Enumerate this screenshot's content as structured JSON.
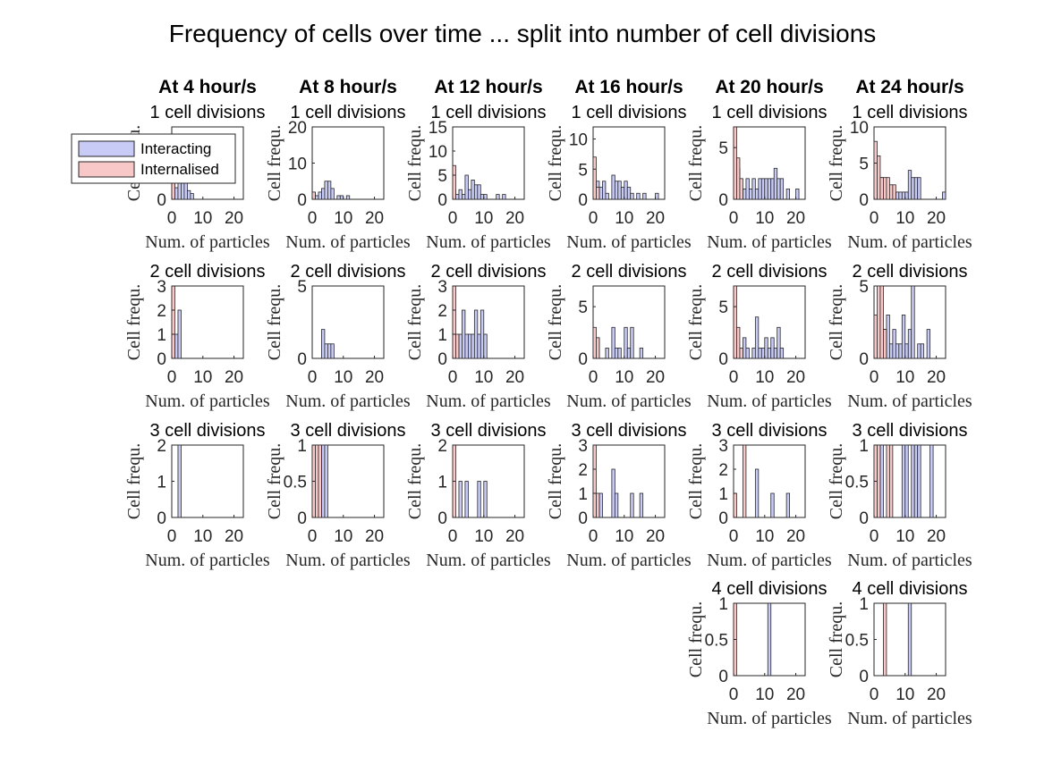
{
  "figure": {
    "title": "Frequency of cells over time ... split into number of cell divisions",
    "column_titles": [
      "At 4 hour/s",
      "At 8 hour/s",
      "At 12 hour/s",
      "At 16 hour/s",
      "At 20 hour/s",
      "At 24 hour/s"
    ]
  },
  "legend": {
    "items": [
      {
        "label": "Interacting",
        "color": "#c8cbf5"
      },
      {
        "label": "Internalised",
        "color": "#f8c8c8"
      }
    ]
  },
  "colors": {
    "interacting": "#c8cbf5",
    "internalised": "#f8c8c8",
    "edge": "#262626"
  },
  "chart_data": [
    {
      "type": "bar",
      "row": 0,
      "col": 0,
      "title": "1 cell divisions",
      "xlabel": "Num. of particles",
      "ylabel": "Cell frequ.",
      "xlim": [
        0,
        23
      ],
      "ylim": [
        0,
        25
      ],
      "xticks": [
        0,
        10,
        20
      ],
      "yticks": [
        0,
        10,
        20
      ],
      "series": [
        {
          "name": "Interacting",
          "x": [
            0,
            1,
            2,
            3,
            4,
            5,
            6
          ],
          "values": [
            7,
            4,
            8,
            10,
            7,
            3,
            2
          ]
        },
        {
          "name": "Internalised",
          "x": [
            0
          ],
          "values": [
            14
          ]
        }
      ]
    },
    {
      "type": "bar",
      "row": 0,
      "col": 1,
      "title": "1 cell divisions",
      "xlabel": "Num. of particles",
      "ylabel": "Cell frequ.",
      "xlim": [
        0,
        23
      ],
      "ylim": [
        0,
        20
      ],
      "xticks": [
        0,
        10,
        20
      ],
      "yticks": [
        0,
        10,
        20
      ],
      "series": [
        {
          "name": "Interacting",
          "x": [
            0,
            1,
            2,
            3,
            4,
            5,
            6,
            8,
            9,
            11
          ],
          "values": [
            2,
            1,
            2,
            3,
            5,
            5,
            3,
            1,
            1,
            1
          ]
        },
        {
          "name": "Internalised",
          "x": [
            0
          ],
          "values": [
            2
          ]
        }
      ]
    },
    {
      "type": "bar",
      "row": 0,
      "col": 2,
      "title": "1 cell divisions",
      "xlabel": "Num. of particles",
      "ylabel": "Cell frequ.",
      "xlim": [
        0,
        23
      ],
      "ylim": [
        0,
        15
      ],
      "xticks": [
        0,
        10,
        20
      ],
      "yticks": [
        0,
        5,
        10,
        15
      ],
      "series": [
        {
          "name": "Interacting",
          "x": [
            0,
            1,
            2,
            3,
            4,
            5,
            6,
            7,
            8,
            9,
            10,
            14,
            16
          ],
          "values": [
            2,
            1,
            2,
            1,
            5,
            2,
            4,
            3,
            3,
            1,
            1,
            1,
            1
          ]
        },
        {
          "name": "Internalised",
          "x": [
            0
          ],
          "values": [
            7
          ]
        }
      ]
    },
    {
      "type": "bar",
      "row": 0,
      "col": 3,
      "title": "1 cell divisions",
      "xlabel": "Num. of particles",
      "ylabel": "Cell frequ.",
      "xlim": [
        0,
        23
      ],
      "ylim": [
        0,
        12
      ],
      "xticks": [
        0,
        10,
        20
      ],
      "yticks": [
        0,
        5,
        10
      ],
      "series": [
        {
          "name": "Interacting",
          "x": [
            1,
            2,
            3,
            4,
            6,
            7,
            8,
            9,
            10,
            11,
            12,
            14,
            16,
            20
          ],
          "values": [
            3,
            2,
            3,
            1,
            4,
            3,
            3,
            2,
            3,
            2,
            1,
            1,
            1,
            1
          ]
        },
        {
          "name": "Internalised",
          "x": [
            0,
            1
          ],
          "values": [
            7,
            2
          ]
        }
      ]
    },
    {
      "type": "bar",
      "row": 0,
      "col": 4,
      "title": "1 cell divisions",
      "xlabel": "Num. of particles",
      "ylabel": "Cell frequ.",
      "xlim": [
        0,
        23
      ],
      "ylim": [
        0,
        7
      ],
      "xticks": [
        0,
        10,
        20
      ],
      "yticks": [
        0,
        5
      ],
      "series": [
        {
          "name": "Interacting",
          "x": [
            1,
            2,
            3,
            4,
            5,
            6,
            7,
            8,
            9,
            10,
            11,
            12,
            13,
            14,
            15,
            17,
            20
          ],
          "values": [
            3,
            1,
            1,
            2,
            1,
            2,
            1,
            2,
            2,
            2,
            2,
            2,
            3,
            2,
            2,
            1,
            1
          ]
        },
        {
          "name": "Internalised",
          "x": [
            0,
            1,
            2
          ],
          "values": [
            7,
            4,
            2
          ]
        }
      ]
    },
    {
      "type": "bar",
      "row": 0,
      "col": 5,
      "title": "1 cell divisions",
      "xlabel": "Num. of particles",
      "ylabel": "Cell frequ.",
      "xlim": [
        0,
        23
      ],
      "ylim": [
        0,
        10
      ],
      "xticks": [
        0,
        10,
        20
      ],
      "yticks": [
        0,
        5,
        10
      ],
      "series": [
        {
          "name": "Interacting",
          "x": [
            1,
            2,
            3,
            4,
            5,
            6,
            7,
            8,
            9,
            10,
            11,
            12,
            13,
            14,
            22
          ],
          "values": [
            2,
            3,
            2,
            1,
            1,
            1,
            1,
            1,
            1,
            1,
            4,
            3,
            3,
            3,
            1
          ]
        },
        {
          "name": "Internalised",
          "x": [
            0,
            1,
            2,
            3,
            4,
            5,
            6
          ],
          "values": [
            8,
            6,
            3,
            3,
            3,
            2,
            2
          ]
        }
      ]
    },
    {
      "type": "bar",
      "row": 1,
      "col": 0,
      "title": "2 cell divisions",
      "xlabel": "Num. of particles",
      "ylabel": "Cell frequ.",
      "xlim": [
        0,
        23
      ],
      "ylim": [
        0,
        3
      ],
      "xticks": [
        0,
        10,
        20
      ],
      "yticks": [
        0,
        1,
        2,
        3
      ],
      "series": [
        {
          "name": "Interacting",
          "x": [
            1,
            2
          ],
          "values": [
            1,
            2
          ]
        },
        {
          "name": "Internalised",
          "x": [
            0
          ],
          "values": [
            3
          ]
        }
      ]
    },
    {
      "type": "bar",
      "row": 1,
      "col": 1,
      "title": "2 cell divisions",
      "xlabel": "Num. of particles",
      "ylabel": "Cell frequ.",
      "xlim": [
        0,
        23
      ],
      "ylim": [
        0,
        5
      ],
      "xticks": [
        0,
        10,
        20
      ],
      "yticks": [
        0,
        5
      ],
      "series": [
        {
          "name": "Interacting",
          "x": [
            3,
            4,
            5,
            6
          ],
          "values": [
            2,
            1,
            1,
            1
          ]
        },
        {
          "name": "Internalised",
          "x": [],
          "values": []
        }
      ]
    },
    {
      "type": "bar",
      "row": 1,
      "col": 2,
      "title": "2 cell divisions",
      "xlabel": "Num. of particles",
      "ylabel": "Cell frequ.",
      "xlim": [
        0,
        23
      ],
      "ylim": [
        0,
        3
      ],
      "xticks": [
        0,
        10,
        20
      ],
      "yticks": [
        0,
        1,
        2,
        3
      ],
      "series": [
        {
          "name": "Interacting",
          "x": [
            2,
            3,
            4,
            5,
            6,
            7,
            8,
            9,
            10
          ],
          "values": [
            1,
            2,
            1,
            1,
            1,
            2,
            1,
            2,
            1
          ]
        },
        {
          "name": "Internalised",
          "x": [
            0,
            1
          ],
          "values": [
            3,
            1
          ]
        }
      ]
    },
    {
      "type": "bar",
      "row": 1,
      "col": 3,
      "title": "2 cell divisions",
      "xlabel": "Num. of particles",
      "ylabel": "Cell frequ.",
      "xlim": [
        0,
        23
      ],
      "ylim": [
        0,
        7
      ],
      "xticks": [
        0,
        10,
        20
      ],
      "yticks": [
        0,
        5
      ],
      "series": [
        {
          "name": "Interacting",
          "x": [
            1,
            4,
            6,
            7,
            8,
            10,
            11,
            12,
            15
          ],
          "values": [
            2,
            1,
            3,
            1,
            1,
            3,
            1,
            3,
            1
          ]
        },
        {
          "name": "Internalised",
          "x": [
            0,
            1
          ],
          "values": [
            3,
            2
          ]
        }
      ]
    },
    {
      "type": "bar",
      "row": 1,
      "col": 4,
      "title": "2 cell divisions",
      "xlabel": "Num. of particles",
      "ylabel": "Cell frequ.",
      "xlim": [
        0,
        23
      ],
      "ylim": [
        0,
        7
      ],
      "xticks": [
        0,
        10,
        20
      ],
      "yticks": [
        0,
        5
      ],
      "series": [
        {
          "name": "Interacting",
          "x": [
            3,
            4,
            6,
            7,
            8,
            9,
            10,
            11,
            12,
            13,
            14,
            15
          ],
          "values": [
            2,
            1,
            1,
            4,
            1,
            1,
            2,
            1,
            2,
            1,
            3,
            1
          ]
        },
        {
          "name": "Internalised",
          "x": [
            0,
            1,
            2
          ],
          "values": [
            7,
            3,
            1
          ]
        }
      ]
    },
    {
      "type": "bar",
      "row": 1,
      "col": 5,
      "title": "2 cell divisions",
      "xlabel": "Num. of particles",
      "ylabel": "Cell frequ.",
      "xlim": [
        0,
        23
      ],
      "ylim": [
        0,
        5
      ],
      "xticks": [
        0,
        10,
        20
      ],
      "yticks": [
        0,
        5
      ],
      "series": [
        {
          "name": "Interacting",
          "x": [
            3,
            4,
            5,
            6,
            7,
            8,
            9,
            10,
            11,
            12,
            14,
            15,
            17
          ],
          "values": [
            2,
            3,
            1,
            2,
            1,
            1,
            3,
            1,
            2,
            5,
            1,
            1,
            2
          ]
        },
        {
          "name": "Internalised",
          "x": [
            0,
            1,
            2,
            3
          ],
          "values": [
            3,
            5,
            5,
            2
          ]
        }
      ]
    },
    {
      "type": "bar",
      "row": 2,
      "col": 0,
      "title": "3 cell divisions",
      "xlabel": "Num. of particles",
      "ylabel": "Cell frequ.",
      "xlim": [
        0,
        23
      ],
      "ylim": [
        0,
        2
      ],
      "xticks": [
        0,
        10,
        20
      ],
      "yticks": [
        0,
        1,
        2
      ],
      "series": [
        {
          "name": "Interacting",
          "x": [
            2
          ],
          "values": [
            2
          ]
        },
        {
          "name": "Internalised",
          "x": [],
          "values": []
        }
      ]
    },
    {
      "type": "bar",
      "row": 2,
      "col": 1,
      "title": "3 cell divisions",
      "xlabel": "Num. of particles",
      "ylabel": "Cell frequ.",
      "xlim": [
        0,
        23
      ],
      "ylim": [
        0,
        1
      ],
      "xticks": [
        0,
        10,
        20
      ],
      "yticks": [
        0,
        0.5,
        1
      ],
      "series": [
        {
          "name": "Interacting",
          "x": [
            3,
            4
          ],
          "values": [
            1,
            1
          ]
        },
        {
          "name": "Internalised",
          "x": [
            0,
            1,
            2
          ],
          "values": [
            1,
            1,
            1
          ]
        }
      ]
    },
    {
      "type": "bar",
      "row": 2,
      "col": 2,
      "title": "3 cell divisions",
      "xlabel": "Num. of particles",
      "ylabel": "Cell frequ.",
      "xlim": [
        0,
        23
      ],
      "ylim": [
        0,
        2
      ],
      "xticks": [
        0,
        10,
        20
      ],
      "yticks": [
        0,
        1,
        2
      ],
      "series": [
        {
          "name": "Interacting",
          "x": [
            2,
            4,
            8,
            10
          ],
          "values": [
            1,
            1,
            1,
            1
          ]
        },
        {
          "name": "Internalised",
          "x": [
            0
          ],
          "values": [
            2
          ]
        }
      ]
    },
    {
      "type": "bar",
      "row": 2,
      "col": 3,
      "title": "3 cell divisions",
      "xlabel": "Num. of particles",
      "ylabel": "Cell frequ.",
      "xlim": [
        0,
        23
      ],
      "ylim": [
        0,
        3
      ],
      "xticks": [
        0,
        10,
        20
      ],
      "yticks": [
        0,
        1,
        2,
        3
      ],
      "series": [
        {
          "name": "Interacting",
          "x": [
            2,
            6,
            7,
            12,
            15
          ],
          "values": [
            1,
            2,
            1,
            1,
            1
          ]
        },
        {
          "name": "Internalised",
          "x": [
            0,
            1
          ],
          "values": [
            3,
            1
          ]
        }
      ]
    },
    {
      "type": "bar",
      "row": 2,
      "col": 4,
      "title": "3 cell divisions",
      "xlabel": "Num. of particles",
      "ylabel": "Cell frequ.",
      "xlim": [
        0,
        23
      ],
      "ylim": [
        0,
        3
      ],
      "xticks": [
        0,
        10,
        20
      ],
      "yticks": [
        0,
        1,
        2,
        3
      ],
      "series": [
        {
          "name": "Interacting",
          "x": [
            7,
            12,
            17
          ],
          "values": [
            2,
            1,
            1
          ]
        },
        {
          "name": "Internalised",
          "x": [
            0,
            3
          ],
          "values": [
            1,
            3
          ]
        }
      ]
    },
    {
      "type": "bar",
      "row": 2,
      "col": 5,
      "title": "3 cell divisions",
      "xlabel": "Num. of particles",
      "ylabel": "Cell frequ.",
      "xlim": [
        0,
        23
      ],
      "ylim": [
        0,
        1
      ],
      "xticks": [
        0,
        10,
        20
      ],
      "yticks": [
        0,
        0.5,
        1
      ],
      "series": [
        {
          "name": "Interacting",
          "x": [
            2,
            9,
            10,
            12,
            13,
            14,
            18
          ],
          "values": [
            1,
            1,
            1,
            1,
            1,
            1,
            1
          ]
        },
        {
          "name": "Internalised",
          "x": [
            0,
            1,
            4,
            5
          ],
          "values": [
            1,
            1,
            1,
            1
          ]
        }
      ]
    },
    {
      "type": "bar",
      "row": 3,
      "col": 4,
      "title": "4 cell divisions",
      "xlabel": "Num. of particles",
      "ylabel": "Cell frequ.",
      "xlim": [
        0,
        23
      ],
      "ylim": [
        0,
        1
      ],
      "xticks": [
        0,
        10,
        20
      ],
      "yticks": [
        0,
        0.5,
        1
      ],
      "series": [
        {
          "name": "Interacting",
          "x": [
            11
          ],
          "values": [
            1
          ]
        },
        {
          "name": "Internalised",
          "x": [
            0
          ],
          "values": [
            1
          ]
        }
      ]
    },
    {
      "type": "bar",
      "row": 3,
      "col": 5,
      "title": "4 cell divisions",
      "xlabel": "Num. of particles",
      "ylabel": "Cell frequ.",
      "xlim": [
        0,
        23
      ],
      "ylim": [
        0,
        1
      ],
      "xticks": [
        0,
        10,
        20
      ],
      "yticks": [
        0,
        0.5,
        1
      ],
      "series": [
        {
          "name": "Interacting",
          "x": [
            11
          ],
          "values": [
            1
          ]
        },
        {
          "name": "Internalised",
          "x": [
            3
          ],
          "values": [
            1
          ]
        }
      ]
    }
  ]
}
